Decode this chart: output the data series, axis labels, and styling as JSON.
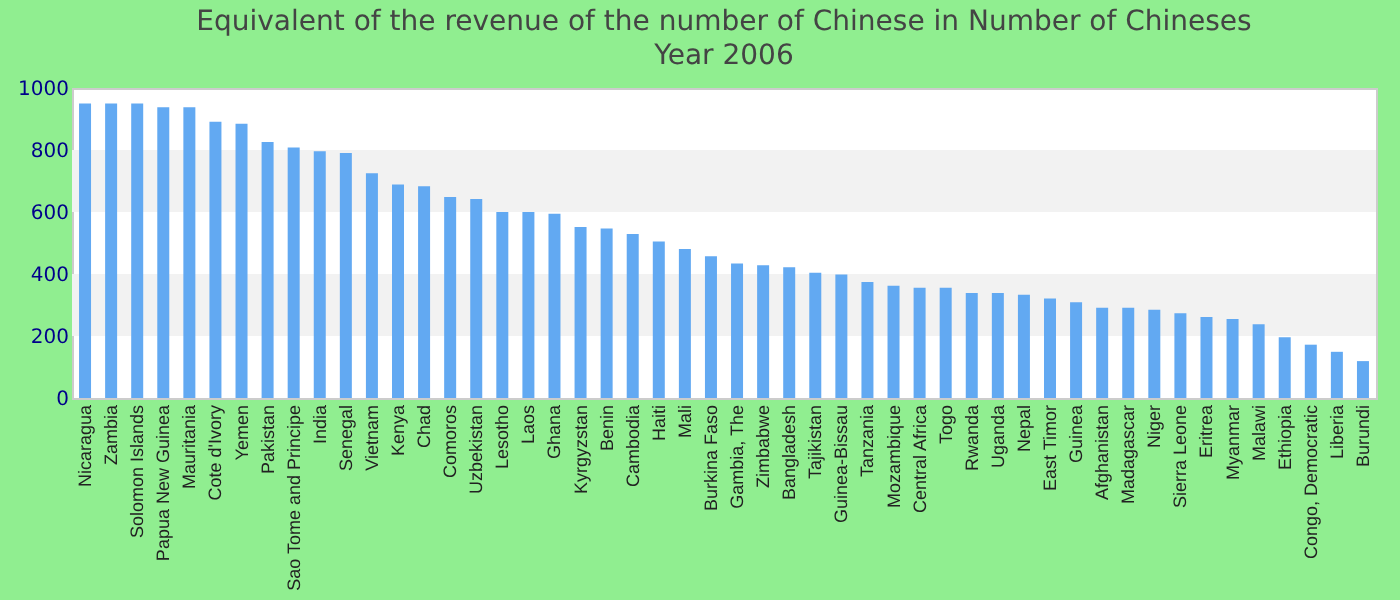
{
  "chart_data": {
    "type": "bar",
    "title": "Equivalent of the revenue of the number of Chinese  in Number of Chineses",
    "subtitle": "Year 2006",
    "categories": [
      "Nicaragua",
      "Zambia",
      "Solomon Islands",
      "Papua New Guinea",
      "Mauritania",
      "Cote d'Ivory",
      "Yemen",
      "Pakistan",
      "Sao Tome and Principe",
      "India",
      "Senegal",
      "Vietnam",
      "Kenya",
      "Chad",
      "Comoros",
      "Uzbekistan",
      "Lesotho",
      "Laos",
      "Ghana",
      "Kyrgyzstan",
      "Benin",
      "Cambodia",
      "Haiti",
      "Mali",
      "Burkina Faso",
      "Gambia, The",
      "Zimbabwe",
      "Bangladesh",
      "Tajikistan",
      "Guinea-Bissau",
      "Tanzania",
      "Mozambique",
      "Central Africa",
      "Togo",
      "Rwanda",
      "Uganda",
      "Nepal",
      "East Timor",
      "Guinea",
      "Afghanistan",
      "Madagascar",
      "Niger",
      "Sierra Leone",
      "Eritrea",
      "Myanmar",
      "Malawi",
      "Ethiopia",
      "Congo, Democratic",
      "Liberia",
      "Burundi"
    ],
    "values": [
      950,
      950,
      950,
      938,
      938,
      891,
      885,
      826,
      808,
      796,
      790,
      725,
      689,
      683,
      648,
      642,
      600,
      600,
      594,
      552,
      547,
      529,
      505,
      481,
      457,
      434,
      428,
      422,
      404,
      398,
      374,
      362,
      356,
      356,
      339,
      339,
      333,
      321,
      309,
      291,
      291,
      285,
      273,
      261,
      255,
      238,
      196,
      172,
      149,
      119
    ],
    "color": "#62a9f2",
    "ylim": [
      0,
      1000
    ],
    "yticks": [
      0,
      200,
      400,
      600,
      800,
      1000
    ],
    "bands": [
      {
        "axis": "y",
        "from": 200,
        "to": 400,
        "color": "#f2f2f2"
      },
      {
        "axis": "y",
        "from": 600,
        "to": 800,
        "color": "#f2f2f2"
      }
    ]
  }
}
